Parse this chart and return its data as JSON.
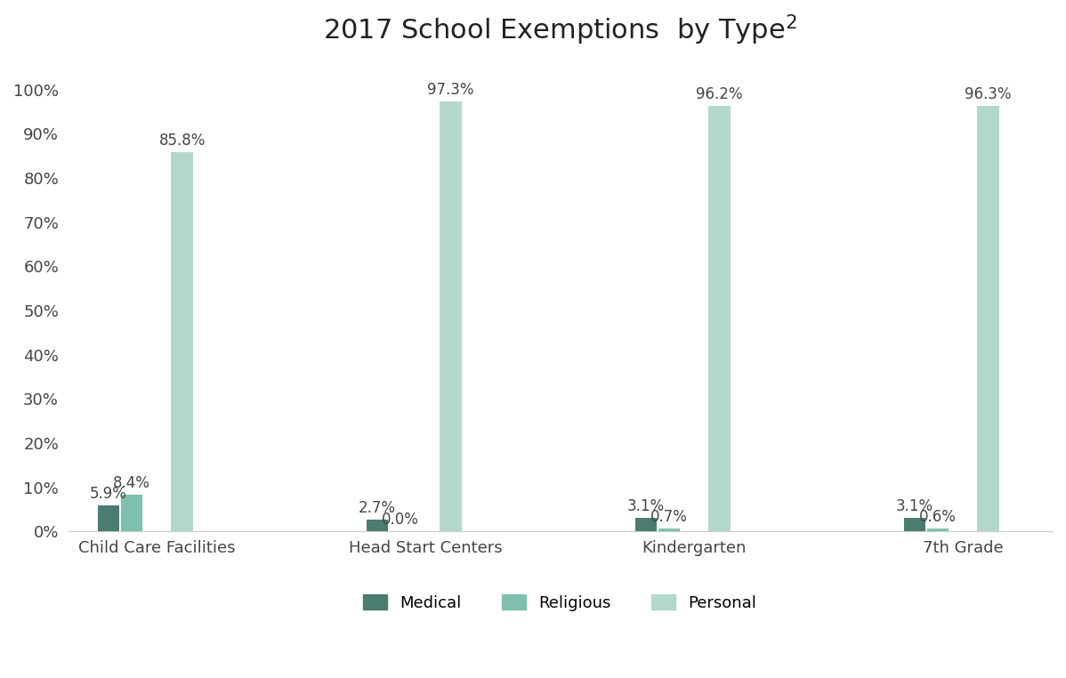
{
  "title": "2017 School Exemptions  by Type",
  "title_superscript": "2",
  "categories": [
    "Child Care Facilities",
    "Head Start Centers",
    "Kindergarten",
    "7th Grade"
  ],
  "series": {
    "Medical": [
      5.9,
      2.7,
      3.1,
      3.1
    ],
    "Religious": [
      8.4,
      0.0,
      0.7,
      0.6
    ],
    "Personal": [
      85.8,
      97.3,
      96.2,
      96.3
    ]
  },
  "colors": {
    "Medical": "#4a7c6f",
    "Religious": "#7fbfae",
    "Personal": "#b2d8cc"
  },
  "bar_labels": {
    "Medical": [
      "5.9%",
      "2.7%",
      "3.1%",
      "3.1%"
    ],
    "Religious": [
      "8.4%",
      "0.0%",
      "0.7%",
      "0.6%"
    ],
    "Personal": [
      "85.8%",
      "97.3%",
      "96.2%",
      "96.3%"
    ]
  },
  "ylim": [
    0,
    107
  ],
  "yticks": [
    0,
    10,
    20,
    30,
    40,
    50,
    60,
    70,
    80,
    90,
    100
  ],
  "ytick_labels": [
    "0%",
    "10%",
    "20%",
    "30%",
    "40%",
    "50%",
    "60%",
    "70%",
    "80%",
    "90%",
    "100%"
  ],
  "bar_width": 0.12,
  "background_color": "#ffffff",
  "title_fontsize": 22,
  "axis_label_fontsize": 13,
  "tick_fontsize": 13,
  "legend_fontsize": 13,
  "annotation_fontsize": 12,
  "offsets": [
    -0.27,
    -0.14,
    0.14
  ]
}
